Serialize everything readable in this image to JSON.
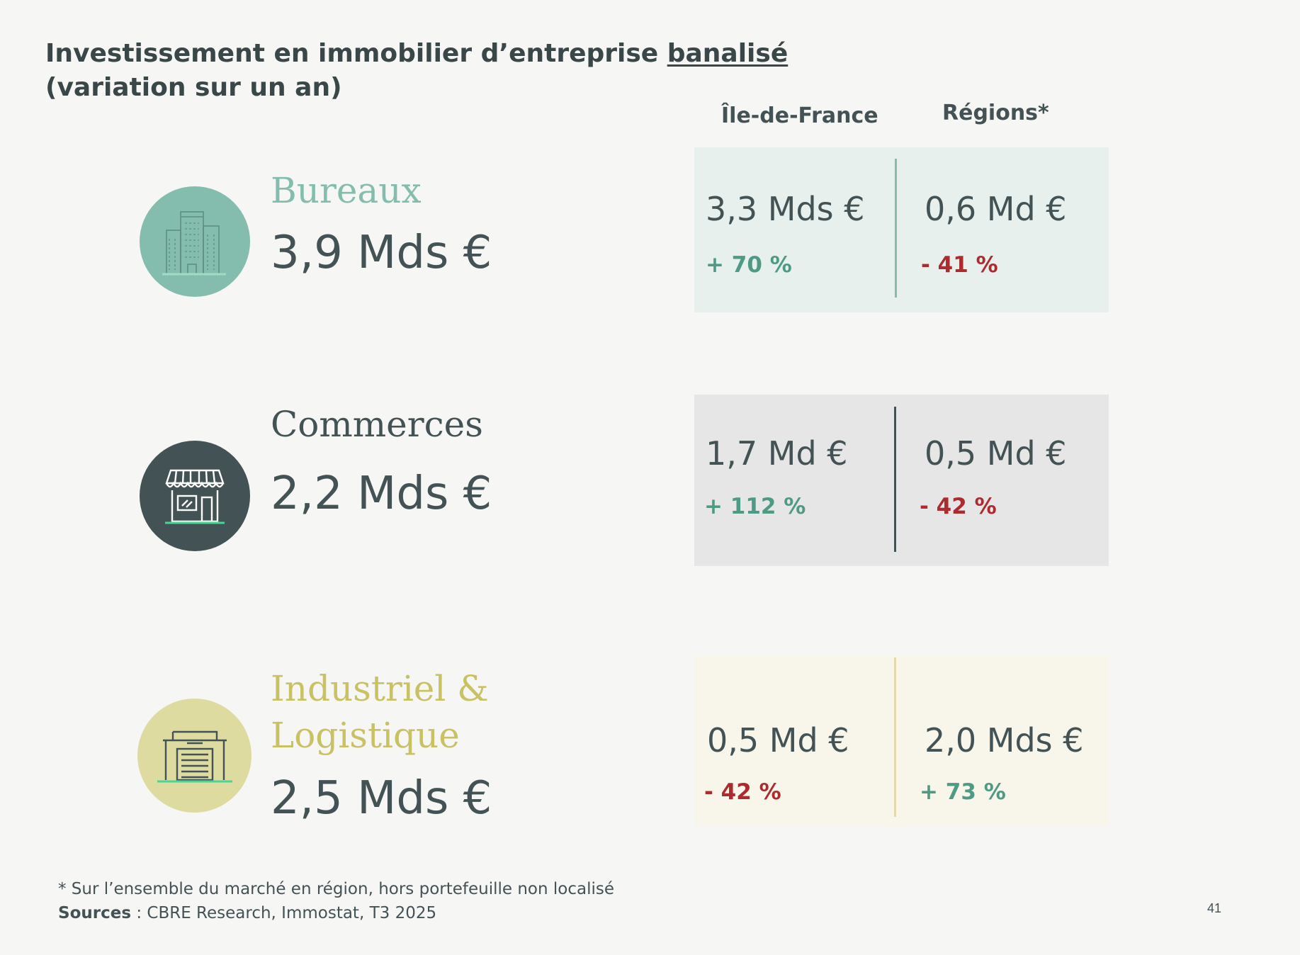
{
  "title": {
    "line1_prefix": "Investissement en immobilier d’entreprise ",
    "line1_underlined": "banalisé",
    "line2": "(variation sur un an)"
  },
  "columns": {
    "idf": "Île-de-France",
    "regions": "Régions*"
  },
  "colors": {
    "positive": "#4e9a84",
    "negative": "#ad2a2f"
  },
  "rows": [
    {
      "category": "Bureaux",
      "total": "3,9 Mds €",
      "idf_value": "3,3 Mds €",
      "idf_change": "+ 70 %",
      "regions_value": "0,6 Md €",
      "regions_change": "- 41 %",
      "icon": "office-buildings-icon",
      "accent": "#84bcae"
    },
    {
      "category": "Commerces",
      "total": "2,2 Mds €",
      "idf_value": "1,7 Md €",
      "idf_change": "+ 112 %",
      "regions_value": "0,5 Md €",
      "regions_change": "- 42 %",
      "icon": "storefront-icon",
      "accent": "#435254"
    },
    {
      "category_line1": "Industriel &",
      "category_line2": "Logistique",
      "total": "2,5 Mds €",
      "idf_value": "0,5 Md €",
      "idf_change": "- 42 %",
      "regions_value": "2,0 Mds €",
      "regions_change": "+ 73 %",
      "icon": "warehouse-icon",
      "accent": "#c9c265"
    }
  ],
  "footnote": "* Sur l’ensemble du marché en région, hors portefeuille non localisé",
  "sources": {
    "label": "Sources",
    "text": " : CBRE Research,  Immostat, T3 2025"
  },
  "page_number": "41"
}
